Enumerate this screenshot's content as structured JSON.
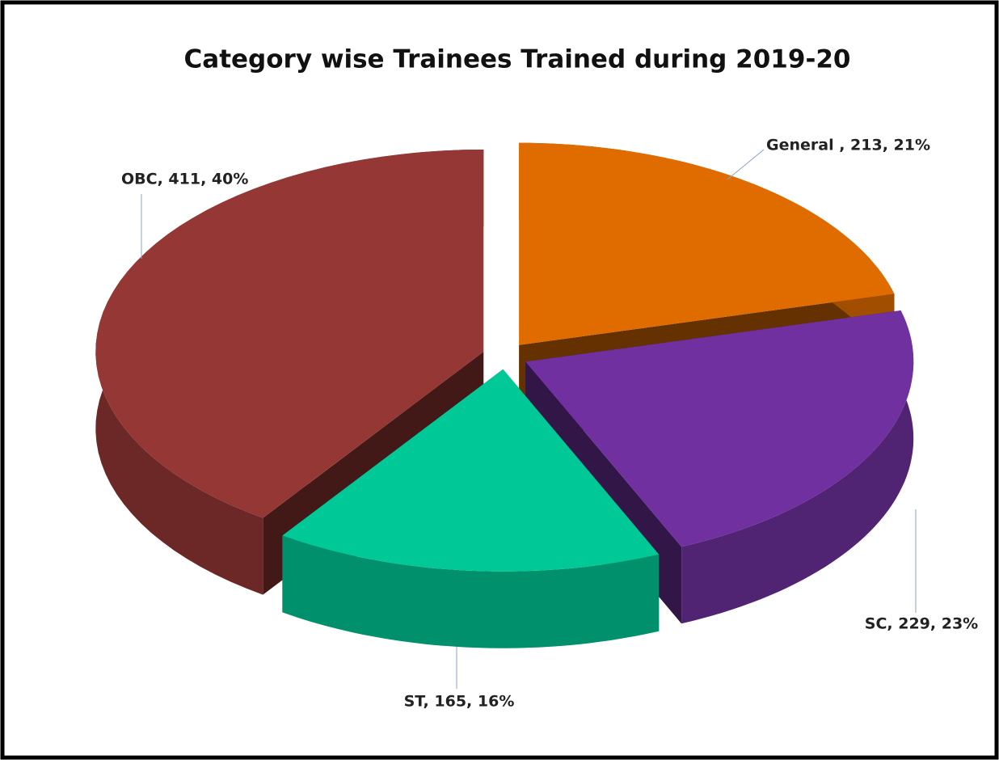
{
  "chart_data": {
    "type": "pie3d",
    "title": "Category wise Trainees Trained during 2019-20",
    "categories": [
      "General",
      "SC",
      "ST",
      "OBC"
    ],
    "values": [
      213,
      229,
      165,
      411
    ],
    "value_labels": [
      "General , 213, 21%",
      "SC, 229, 23%",
      "ST, 165, 16%",
      "OBC, 411, 40%"
    ],
    "colors": [
      "#e06c00",
      "#7030a0",
      "#00c896",
      "#953735"
    ]
  }
}
